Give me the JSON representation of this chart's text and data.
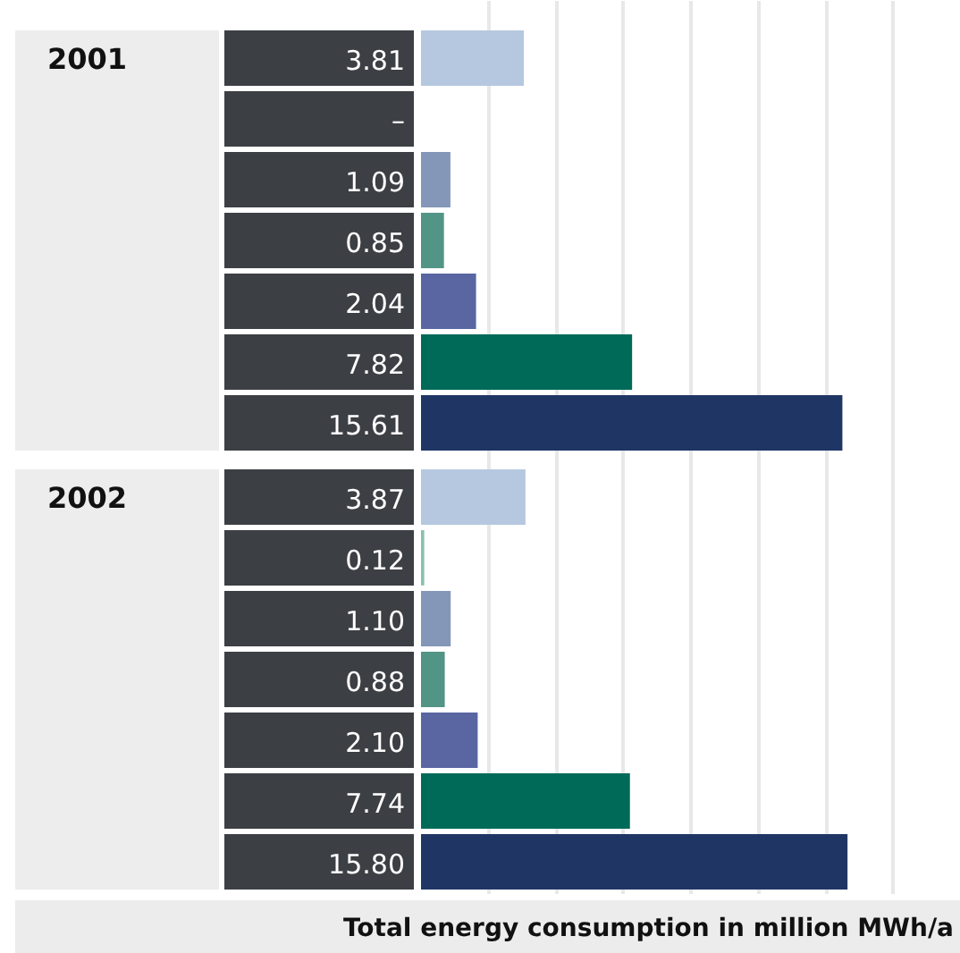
{
  "chart_data": {
    "type": "bar",
    "orientation": "horizontal",
    "xlabel": "Total energy consumption in million MWh/a",
    "categories": [
      "2001",
      "2002"
    ],
    "series": [
      {
        "color": "#b5c8df",
        "values": [
          3.81,
          3.87
        ],
        "value_labels": [
          "3.81",
          "3.87"
        ]
      },
      {
        "color": "#8cc0ad",
        "values": [
          null,
          0.12
        ],
        "value_labels": [
          "–",
          "0.12"
        ]
      },
      {
        "color": "#8497b9",
        "values": [
          1.09,
          1.1
        ],
        "value_labels": [
          "1.09",
          "1.10"
        ]
      },
      {
        "color": "#529486",
        "values": [
          0.85,
          0.88
        ],
        "value_labels": [
          "0.85",
          "0.88"
        ]
      },
      {
        "color": "#5966a2",
        "values": [
          2.04,
          2.1
        ],
        "value_labels": [
          "2.04",
          "2.10"
        ]
      },
      {
        "color": "#006a58",
        "values": [
          7.82,
          7.74
        ],
        "value_labels": [
          "7.82",
          "7.74"
        ]
      },
      {
        "color": "#1f3665",
        "values": [
          15.61,
          15.8
        ],
        "value_labels": [
          "15.61",
          "15.80"
        ]
      }
    ],
    "xlim": [
      0,
      20
    ],
    "xticks": [
      {
        "value": 2.5,
        "label": null
      },
      {
        "value": 5,
        "label": null
      },
      {
        "value": 7.5,
        "label": null
      },
      {
        "value": 10,
        "label": null
      },
      {
        "value": 12.5,
        "label": null
      },
      {
        "value": 15,
        "label": null
      },
      {
        "value": 17.5,
        "label": null
      }
    ],
    "grid": "x",
    "tick_labels": false
  }
}
